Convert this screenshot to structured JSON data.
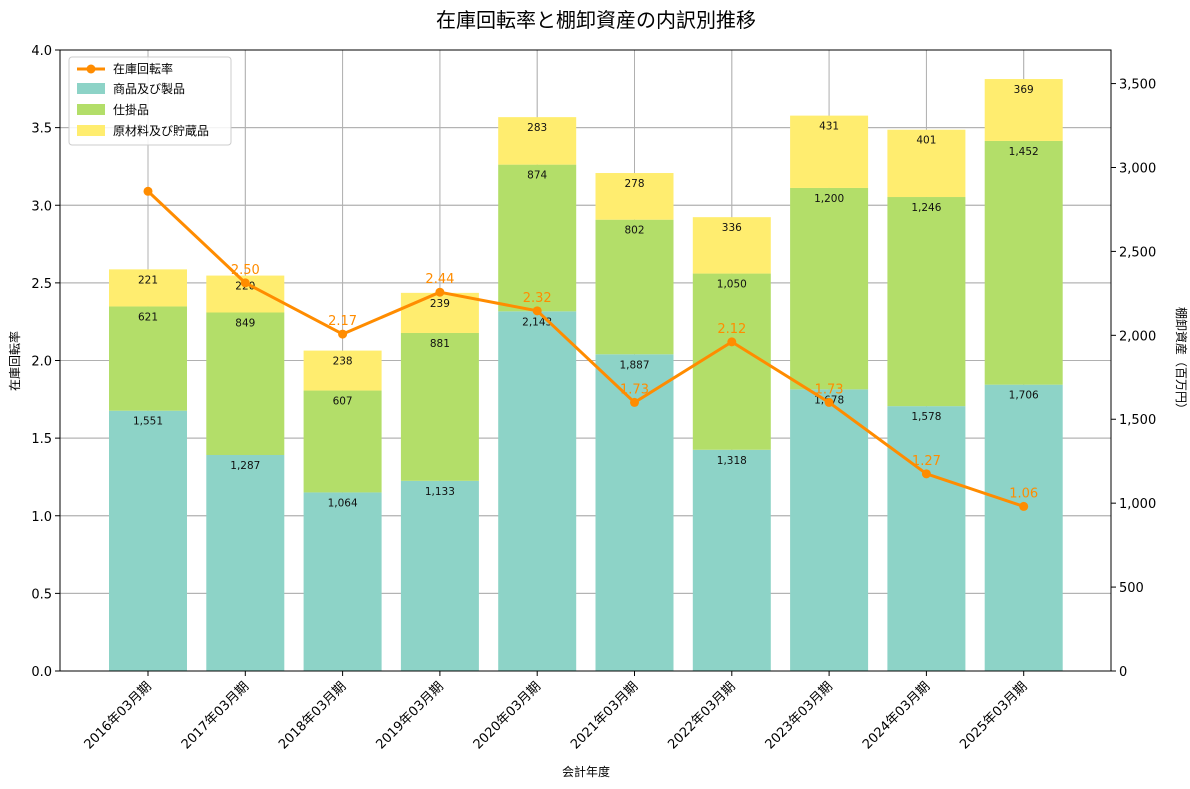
{
  "chart_data": {
    "type": "bar",
    "title": "在庫回転率と棚卸資産の内訳別推移",
    "xlabel": "会計年度",
    "ylabel_left": "在庫回転率",
    "ylabel_right": "棚卸資産（百万円）",
    "ylim_left": [
      0,
      4.0
    ],
    "ylim_right": [
      0,
      3700
    ],
    "yticks_left": [
      "0.0",
      "0.5",
      "1.0",
      "1.5",
      "2.0",
      "2.5",
      "3.0",
      "3.5",
      "4.0"
    ],
    "yticks_right": [
      "0",
      "500",
      "1,000",
      "1,500",
      "2,000",
      "2,500",
      "3,000",
      "3,500"
    ],
    "grid": true,
    "legend_position": "top-left",
    "categories": [
      "2016年03月期",
      "2017年03月期",
      "2018年03月期",
      "2019年03月期",
      "2020年03月期",
      "2021年03月期",
      "2022年03月期",
      "2023年03月期",
      "2024年03月期",
      "2025年03月期"
    ],
    "stacked": true,
    "series": [
      {
        "name": "商品及び製品",
        "color": "#8dd3c7",
        "values": [
          1551,
          1287,
          1064,
          1133,
          2143,
          1887,
          1318,
          1678,
          1578,
          1706
        ],
        "labels": [
          "1,551",
          "1,287",
          "1,064",
          "1,133",
          "2,143",
          "1,887",
          "1,318",
          "1,678",
          "1,578",
          "1,706"
        ]
      },
      {
        "name": "仕掛品",
        "color": "#b3de69",
        "values": [
          621,
          849,
          607,
          881,
          874,
          802,
          1050,
          1200,
          1246,
          1452
        ],
        "labels": [
          "621",
          "849",
          "607",
          "881",
          "874",
          "802",
          "1,050",
          "1,200",
          "1,246",
          "1,452"
        ]
      },
      {
        "name": "原材料及び貯蔵品",
        "color": "#ffed6f",
        "values": [
          221,
          220,
          238,
          239,
          283,
          278,
          336,
          431,
          401,
          369
        ],
        "labels": [
          "221",
          "220",
          "238",
          "239",
          "283",
          "278",
          "336",
          "431",
          "401",
          "369"
        ]
      }
    ],
    "line": {
      "name": "在庫回転率",
      "color": "#ff8c00",
      "axis": "left",
      "values": [
        3.09,
        2.5,
        2.17,
        2.44,
        2.32,
        1.73,
        2.12,
        1.73,
        1.27,
        1.06
      ],
      "labels": [
        "",
        "2.50",
        "2.17",
        "2.44",
        "2.32",
        "1.73",
        "2.12",
        "1.73",
        "1.27",
        "1.06"
      ]
    }
  }
}
